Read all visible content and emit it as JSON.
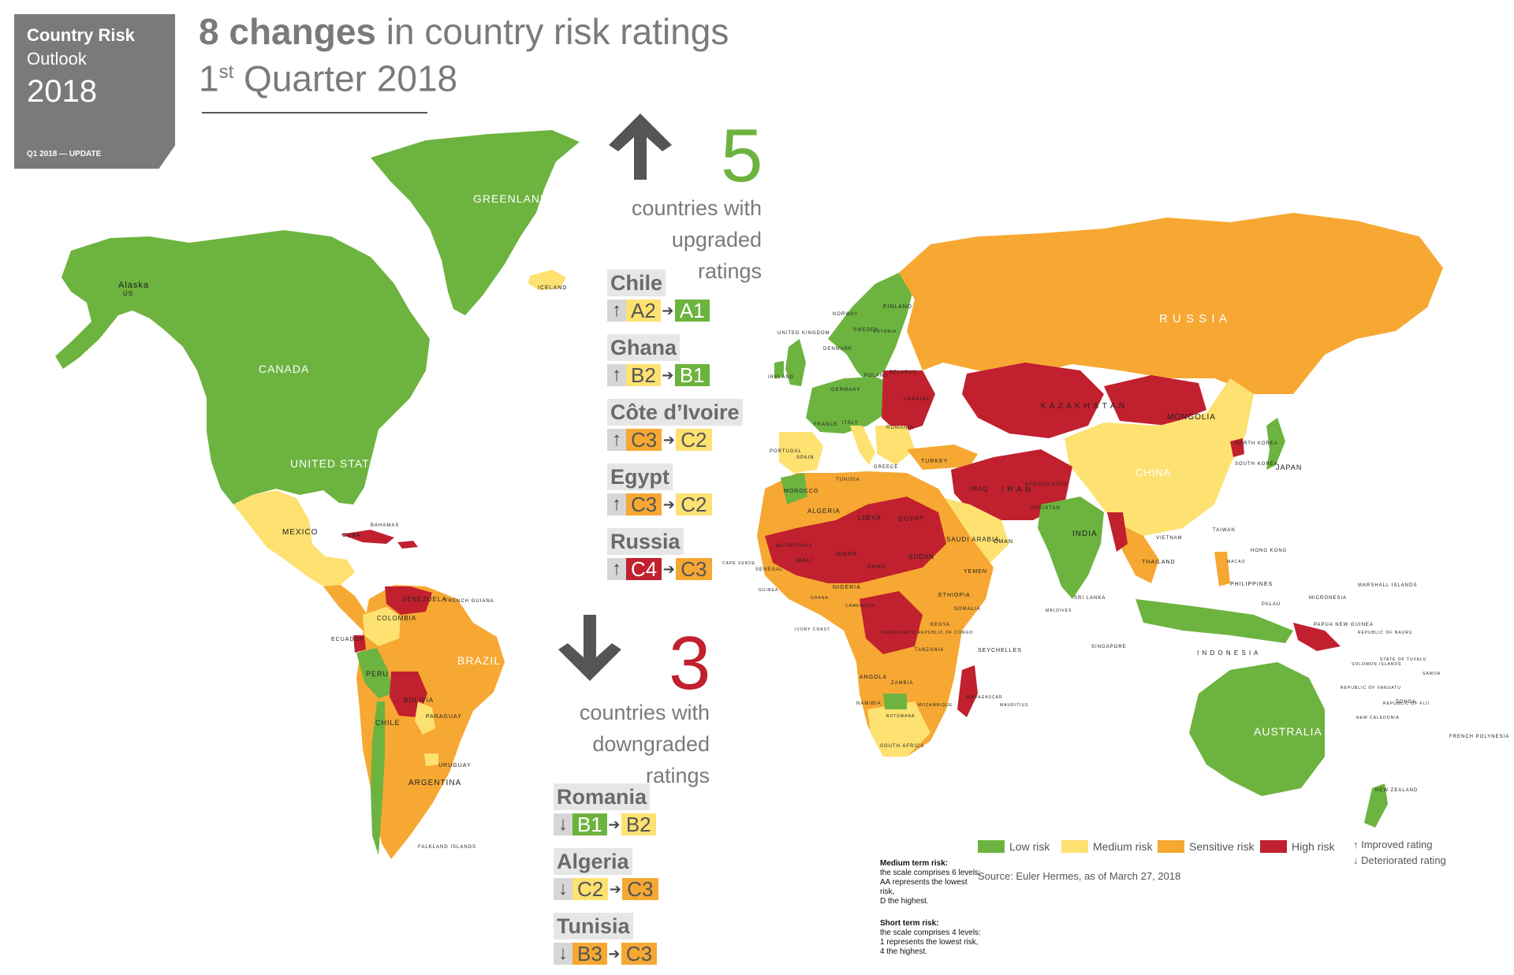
{
  "tag": {
    "line1": "Country Risk",
    "line2": "Outlook",
    "year": "2018",
    "update": "Q1 2018 — UPDATE"
  },
  "headline": {
    "bold": "8 changes",
    "rest": " in country risk ratings",
    "quarter_num": "1",
    "quarter_sup": "st",
    "quarter_rest": " Quarter 2018"
  },
  "colors": {
    "low": "#6db33f",
    "medium": "#fde171",
    "sensitive": "#f6a833",
    "high": "#c1202e",
    "ocean": "#ffffff",
    "text_grey": "#7a7a7a"
  },
  "upgrades": {
    "count": "5",
    "desc_l1": "countries with",
    "desc_l2": "upgraded",
    "desc_l3": "ratings",
    "items": [
      {
        "country": "Chile",
        "arrow": "↑",
        "from": "A2",
        "from_risk": "medium",
        "to": "A1",
        "to_risk": "low"
      },
      {
        "country": "Ghana",
        "arrow": "↑",
        "from": "B2",
        "from_risk": "medium",
        "to": "B1",
        "to_risk": "low"
      },
      {
        "country": "Côte d’Ivoire",
        "arrow": "↑",
        "from": "C3",
        "from_risk": "sensitive",
        "to": "C2",
        "to_risk": "medium"
      },
      {
        "country": "Egypt",
        "arrow": "↑",
        "from": "C3",
        "from_risk": "sensitive",
        "to": "C2",
        "to_risk": "medium"
      },
      {
        "country": "Russia",
        "arrow": "↑",
        "from": "C4",
        "from_risk": "high",
        "to": "C3",
        "to_risk": "sensitive"
      }
    ]
  },
  "downgrades": {
    "count": "3",
    "desc_l1": "countries with",
    "desc_l2": "downgraded",
    "desc_l3": "ratings",
    "items": [
      {
        "country": "Romania",
        "arrow": "↓",
        "from": "B1",
        "from_risk": "low",
        "to": "B2",
        "to_risk": "medium"
      },
      {
        "country": "Algeria",
        "arrow": "↓",
        "from": "C2",
        "from_risk": "medium",
        "to": "C3",
        "to_risk": "sensitive"
      },
      {
        "country": "Tunisia",
        "arrow": "↓",
        "from": "B3",
        "from_risk": "sensitive",
        "to": "C3",
        "to_risk": "sensitive"
      }
    ]
  },
  "legend": {
    "low": "Low risk",
    "medium": "Medium risk",
    "sensitive": "Sensitive risk",
    "high": "High risk",
    "improved": "↑ Improved rating",
    "deteriorated": "↓ Deteriorated rating"
  },
  "source": "Source: Euler Hermes, as of March 27, 2018",
  "scale_notes": {
    "mt_title": "Medium term risk:",
    "mt_l1": "the scale comprises 6 levels:",
    "mt_l2": "AA represents the lowest risk,",
    "mt_l3": "D the highest.",
    "st_title": "Short term risk:",
    "st_l1": "the scale comprises 4 levels:",
    "st_l2": "1 represents the lowest risk,",
    "st_l3": "4 the highest."
  },
  "map_labels": {
    "greenland": "GREENLAND",
    "alaska": "Alaska",
    "alaska_us": "US",
    "canada": "CANADA",
    "united_states": "UNITED STATES",
    "iceland": "ICELAND",
    "mexico": "MEXICO",
    "cuba": "CUBA",
    "bahamas": "BAHAMAS",
    "venezuela": "VENEZUELA",
    "colombia": "COLOMBIA",
    "ecuador": "ECUADOR",
    "peru": "PERU",
    "brazil": "BRAZIL",
    "bolivia": "BOLIVIA",
    "paraguay": "PARAGUAY",
    "chile": "CHILE",
    "argentina": "ARGENTINA",
    "uruguay": "URUGUAY",
    "falkland": "FALKLAND ISLANDS",
    "french_guiana": "FRENCH GUIANA",
    "russia": "R   U   S   S   I   A",
    "kazakhstan": "K A Z A K H S T A N",
    "mongolia": "MONGOLIA",
    "china": "CHINA",
    "japan": "JAPAN",
    "north_korea": "NORTH KOREA",
    "south_korea": "SOUTH KOREA",
    "india": "INDIA",
    "iran": "I R A N",
    "iraq": "IRAQ",
    "turkey": "TURKEY",
    "afghanistan": "AFGHANISTAN",
    "pakistan": "PAKISTAN",
    "saudi_arabia": "SAUDI ARABIA",
    "yemen": "YEMEN",
    "oman": "OMAN",
    "thailand": "THAILAND",
    "vietnam": "VIETNAM",
    "taiwan": "TAIWAN",
    "hong_kong": "HONG KONG",
    "macao": "MACAO",
    "philippines": "PHILIPPINES",
    "singapore": "SINGAPORE",
    "indonesia": "I N D O N E S I A",
    "sri_lanka": "SRI LANKA",
    "maldives": "MALDIVES",
    "australia": "AUSTRALIA",
    "new_zealand": "NEW ZEALAND",
    "papua": "PAPUA NEW GUINEA",
    "palau": "PALAU",
    "micronesia": "MICRONESIA",
    "marshall": "MARSHALL ISLANDS",
    "nauru": "REPUBLIC OF NAURU",
    "solomon": "SOLOMON ISLANDS",
    "tuvalu": "STATE OF TUVALU",
    "vanuatu": "REPUBLIC OF VANUATU",
    "fiji": "REPUBLIC OF FIJI",
    "samoa": "SAMOA",
    "tonga": "TONGA",
    "new_caledonia": "NEW CALEDONIA",
    "french_polynesia": "FRENCH POLYNESIA",
    "uk": "UNITED KINGDOM",
    "ireland": "IRELAND",
    "france": "FRANCE",
    "spain": "SPAIN",
    "portugal": "PORTUGAL",
    "germany": "GERMANY",
    "italy": "ITALY",
    "poland": "POLAND",
    "ukraine": "UKRAINE",
    "belarus": "BELARUS",
    "finland": "FINLAND",
    "sweden": "SWEDEN",
    "norway": "NORWAY",
    "denmark": "DENMARK",
    "estonia": "ESTONIA",
    "greece": "GREECE",
    "romania": "ROMANIA",
    "morocco": "MOROCCO",
    "algeria": "ALGERIA",
    "tunisia": "TUNISIA",
    "libya": "LIBYA",
    "egypt": "EGYPT",
    "mali": "MALI",
    "mauritania": "MAURITANIA",
    "niger": "NIGER",
    "chad": "CHAD",
    "sudan": "SUDAN",
    "ethiopia": "ETHIOPIA",
    "nigeria": "NIGERIA",
    "drc": "DEMOCRATIC REPUBLIC OF CONGO",
    "angola": "ANGOLA",
    "zambia": "ZAMBIA",
    "namibia": "NAMIBIA",
    "botswana": "BOTSWANA",
    "south_africa": "SOUTH AFRICA",
    "madagascar": "MADAGASCAR",
    "tanzania": "TANZANIA",
    "kenya": "KENYA",
    "somalia": "SOMALIA",
    "seychelles": "SEYCHELLES",
    "mozambique": "MOZAMBIQUE",
    "cameroon": "CAMEROON",
    "ghana": "GHANA",
    "ivory_coast": "IVORY COAST",
    "senegal": "SENEGAL",
    "guinea": "GUINEA",
    "cape_verde": "CAPE VERDE",
    "mauritius": "MAURITIUS"
  }
}
